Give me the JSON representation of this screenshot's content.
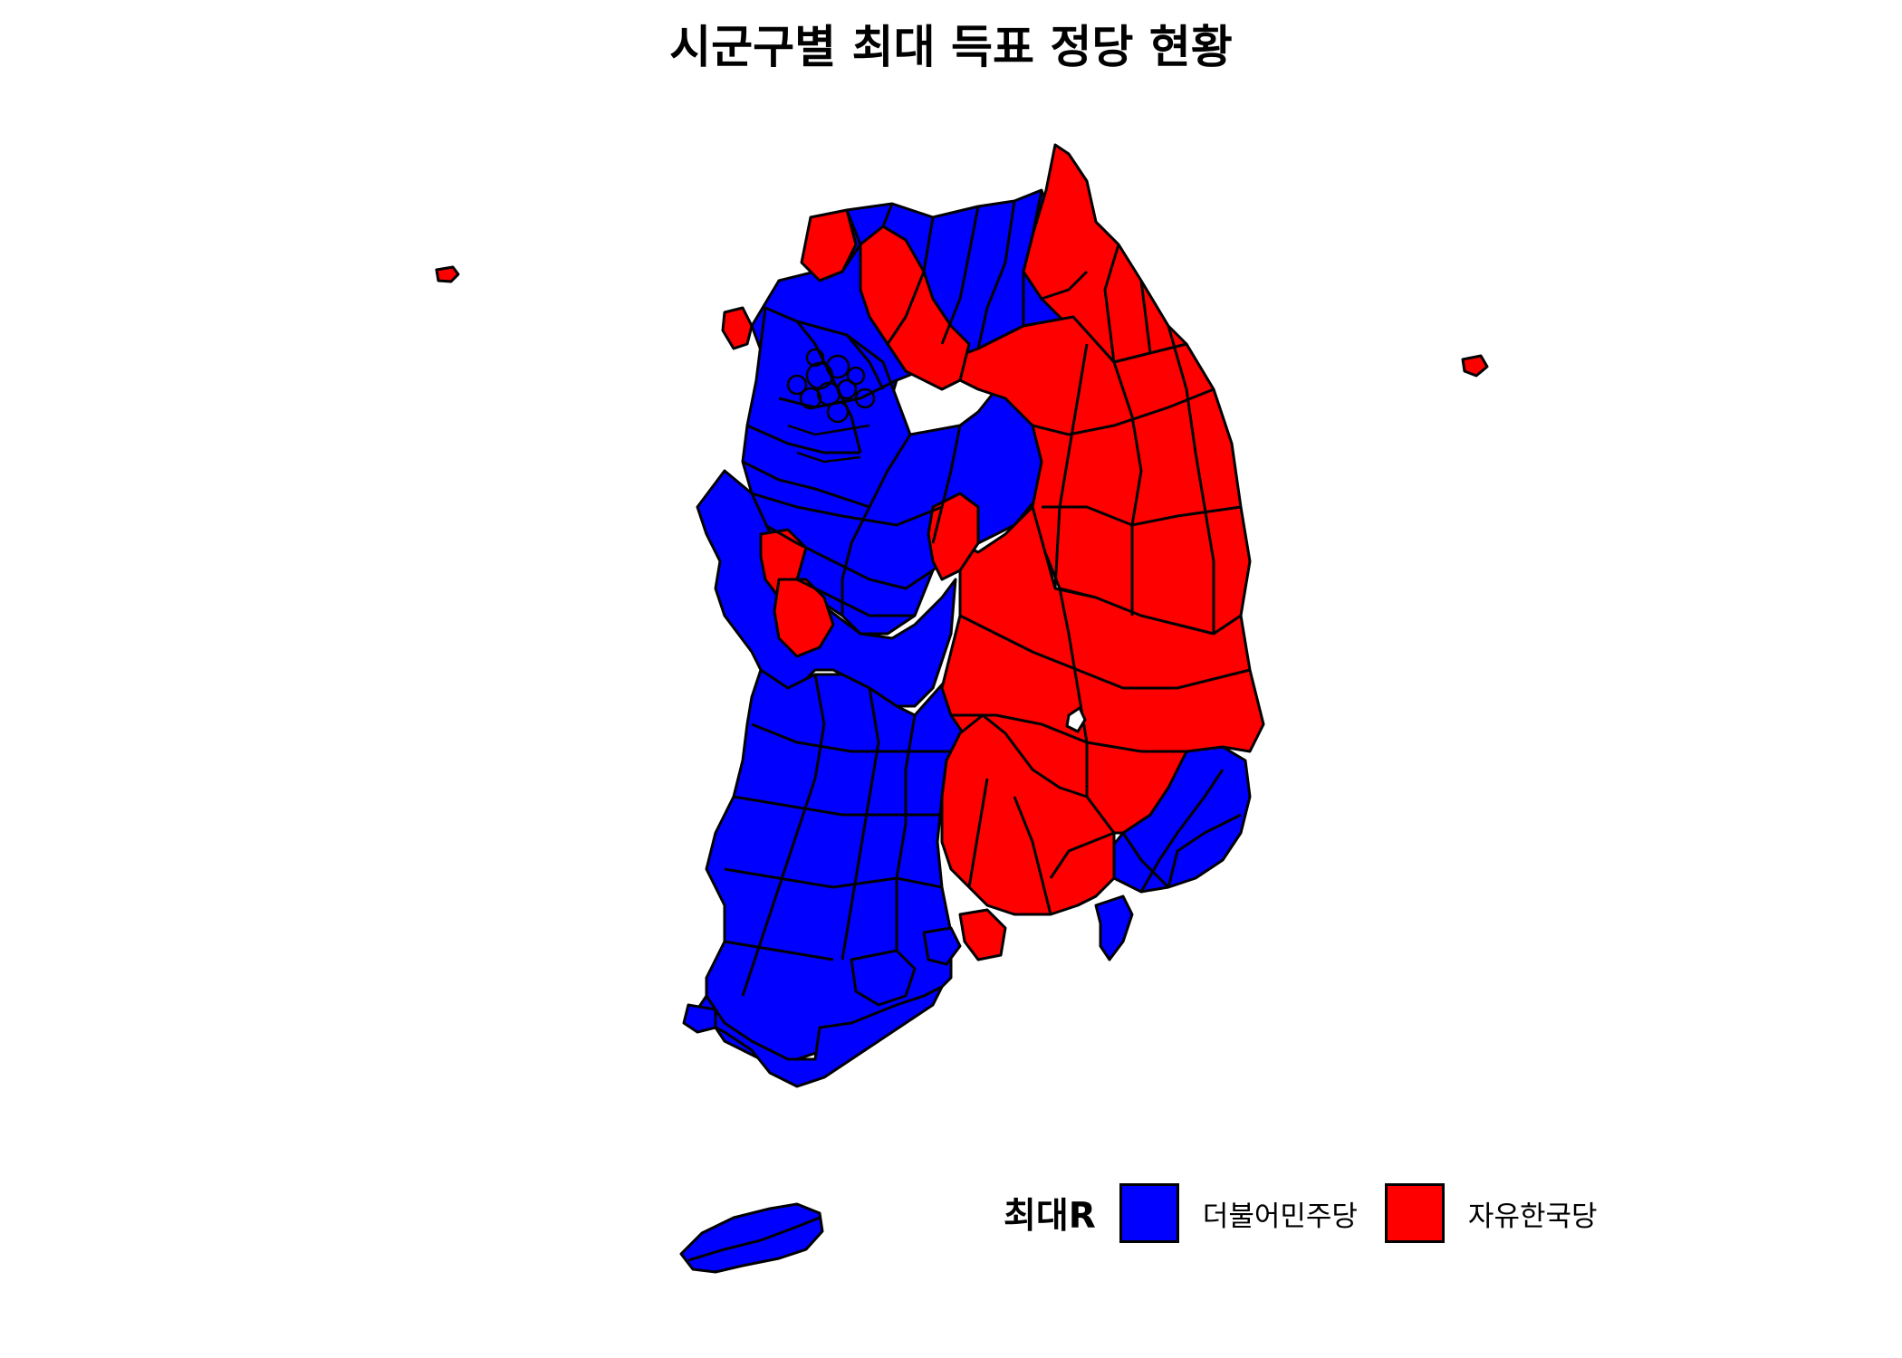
{
  "title": "시군구별 최대 득표 정당 현황",
  "legend": {
    "title": "최대R",
    "items": [
      {
        "label": "더불어민주당",
        "color": "#0000FF"
      },
      {
        "label": "자유한국당",
        "color": "#FF0000"
      }
    ]
  },
  "colors": {
    "democratic": "#0000FF",
    "liberty_korea": "#FF0000",
    "border": "#000000",
    "background": "#FFFFFF"
  }
}
